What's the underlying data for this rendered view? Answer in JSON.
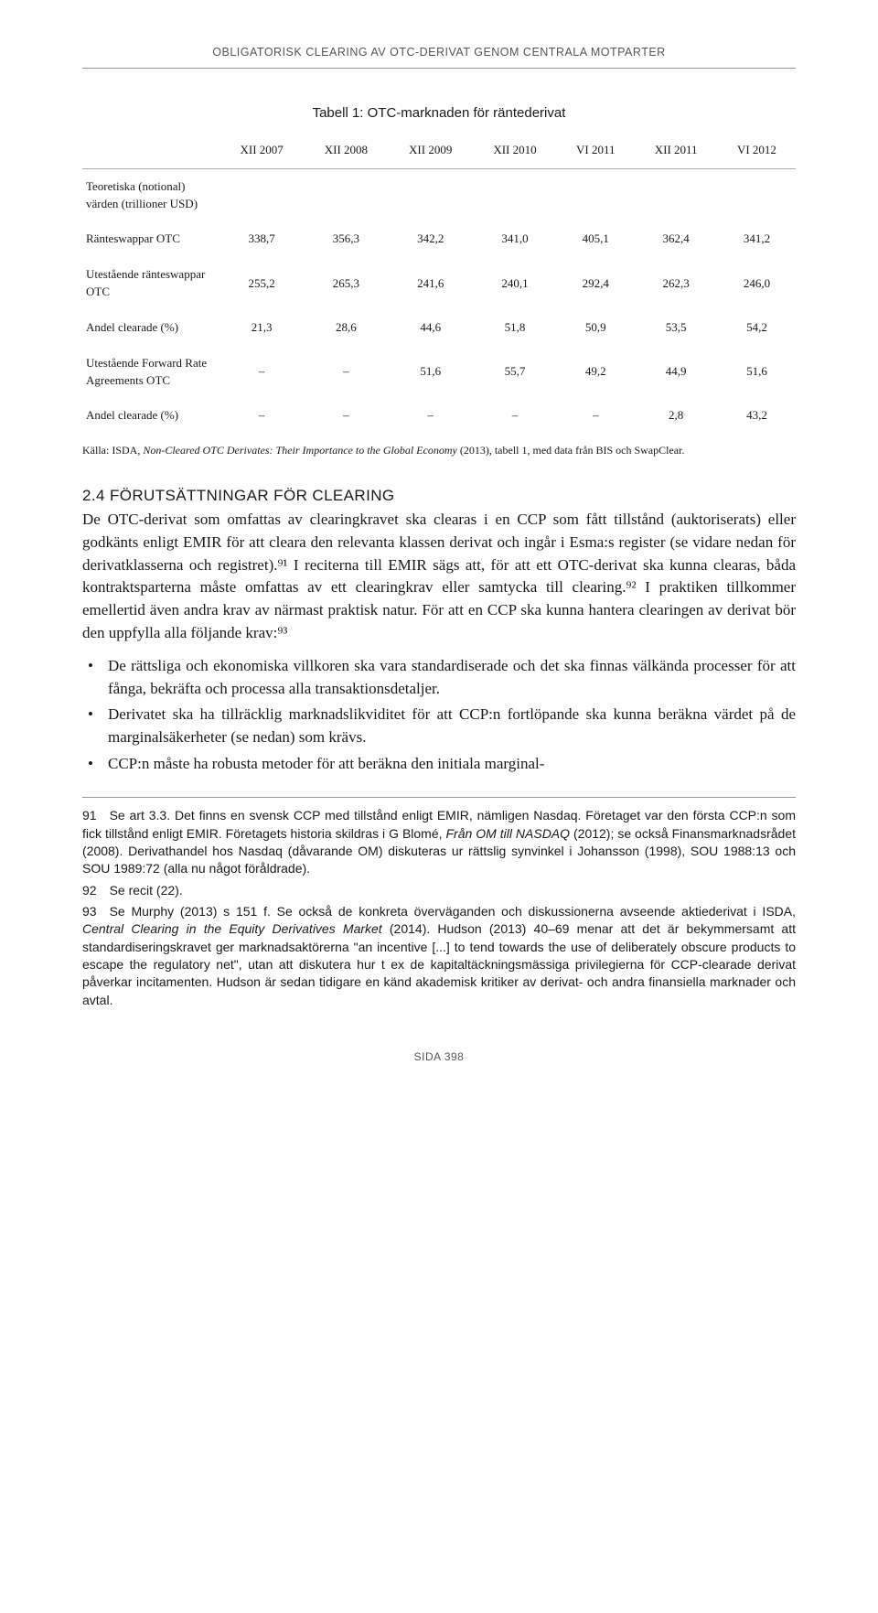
{
  "running_head": "OBLIGATORISK CLEARING AV OTC-DERIVAT GENOM CENTRALA MOTPARTER",
  "table": {
    "title": "Tabell 1: OTC-marknaden för räntederivat",
    "columns": [
      "",
      "XII 2007",
      "XII 2008",
      "XII 2009",
      "XII 2010",
      "VI 2011",
      "XII 2011",
      "VI 2012"
    ],
    "rows": [
      {
        "label": "Teoretiska (notional) värden (trillioner USD)",
        "cells": [
          "",
          "",
          "",
          "",
          "",
          "",
          ""
        ]
      },
      {
        "label": "Ränteswappar OTC",
        "cells": [
          "338,7",
          "356,3",
          "342,2",
          "341,0",
          "405,1",
          "362,4",
          "341,2"
        ]
      },
      {
        "label": "Utestående ränteswappar OTC",
        "cells": [
          "255,2",
          "265,3",
          "241,6",
          "240,1",
          "292,4",
          "262,3",
          "246,0"
        ]
      },
      {
        "label": "Andel clearade (%)",
        "cells": [
          "21,3",
          "28,6",
          "44,6",
          "51,8",
          "50,9",
          "53,5",
          "54,2"
        ]
      },
      {
        "label": "Utestående Forward Rate Agreements OTC",
        "cells": [
          "–",
          "–",
          "51,6",
          "55,7",
          "49,2",
          "44,9",
          "51,6"
        ]
      },
      {
        "label": "Andel clearade (%)",
        "cells": [
          "–",
          "–",
          "–",
          "–",
          "–",
          "2,8",
          "43,2"
        ]
      }
    ],
    "source_prefix": "Källa: ISDA, ",
    "source_italic": "Non-Cleared OTC Derivates: Their Importance to the Global Economy",
    "source_suffix": " (2013), tabell 1, med data från BIS och SwapClear."
  },
  "section_heading": "2.4 FÖRUTSÄTTNINGAR FÖR CLEARING",
  "body_para": "De OTC-derivat som omfattas av clearingkravet ska clearas i en CCP som fått tillstånd (auktoriserats) eller godkänts enligt EMIR för att cleara den relevanta klassen derivat och ingår i Esma:s register (se vidare nedan för derivatklasserna och registret).⁹¹ I reciterna till EMIR sägs att, för att ett OTC-derivat ska kunna clearas, båda kontraktsparterna måste omfattas av ett clearingkrav eller samtycka till clearing.⁹² I praktiken tillkommer emellertid även andra krav av närmast praktisk natur. För att en CCP ska kunna hantera clearingen av derivat bör den uppfylla alla följande krav:⁹³",
  "bullets": [
    "De rättsliga och ekonomiska villkoren ska vara standardiserade och det ska finnas välkända processer för att fånga, bekräfta och processa alla transaktionsdetaljer.",
    "Derivatet ska ha tillräcklig marknadslikviditet för att CCP:n fortlöpande ska kunna beräkna värdet på de marginalsäkerheter (se nedan) som krävs.",
    "CCP:n måste ha robusta metoder för att beräkna den initiala marginal-"
  ],
  "footnotes": {
    "f91_a": "91 Se art 3.3. Det finns en svensk CCP med tillstånd enligt EMIR, nämligen Nasdaq. Företaget var den första CCP:n som fick tillstånd enligt EMIR. Företagets historia skildras i G Blomé, ",
    "f91_i": "Från OM till NASDAQ",
    "f91_b": " (2012); se också Finansmarknadsrådet (2008). Derivathandel hos Nasdaq (dåvarande OM) diskuteras ur rättslig synvinkel i Johansson (1998), SOU 1988:13 och SOU 1989:72 (alla nu något föråldrade).",
    "f92": "92 Se recit (22).",
    "f93_a": "93 Se Murphy (2013) s 151 f. Se också de konkreta överväganden och diskussionerna avseende aktiederivat i ISDA, ",
    "f93_i": "Central Clearing in the Equity Derivatives Market",
    "f93_b": " (2014). Hudson (2013) 40–69 menar att det är bekymmersamt att standardiseringskravet ger marknadsaktörerna \"an incentive [...] to tend towards the use of deliberately obscure products to escape the regulatory net\", utan att diskutera hur t ex de kapitaltäckningsmässiga privilegierna för CCP-clearade derivat påverkar incitamenten. Hudson är sedan tidigare en känd akademisk kritiker av derivat- och andra finansiella marknader och avtal."
  },
  "page_number": "SIDA 398"
}
